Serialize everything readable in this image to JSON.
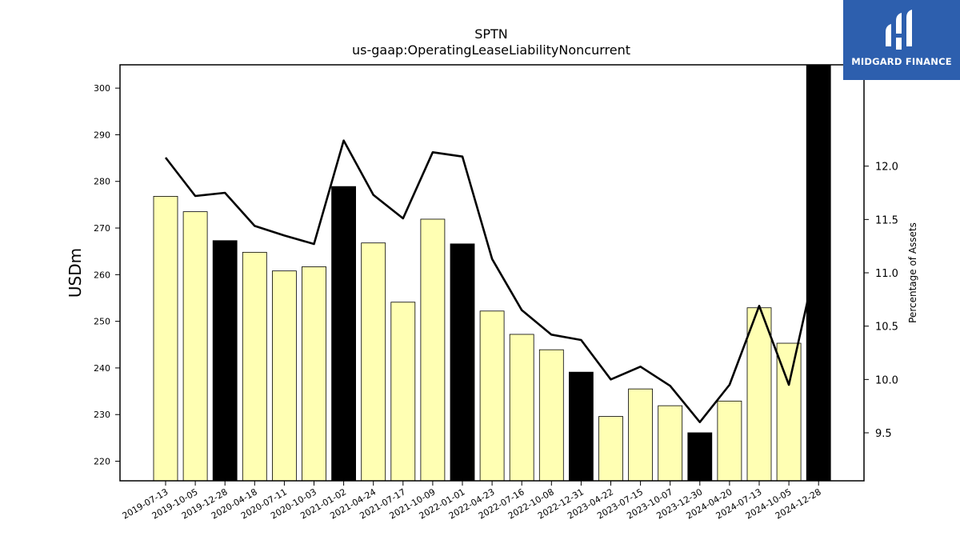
{
  "brand": {
    "name": "MIDGARD FINANCE",
    "bg_color": "#2d5fae"
  },
  "chart_data": {
    "type": "bar",
    "title": "SPTN",
    "subtitle": "us-gaap:OperatingLeaseLiabilityNoncurrent",
    "ylabel": "USDm",
    "y2label": "Percentage of Assets",
    "ylim": [
      215.8,
      305
    ],
    "y2lim": [
      9.05,
      12.95
    ],
    "yticks": [
      220,
      230,
      240,
      250,
      260,
      270,
      280,
      290,
      300
    ],
    "y2ticks": [
      "9.5",
      "10.0",
      "10.5",
      "11.0",
      "11.5",
      "12.0"
    ],
    "categories": [
      "2019-07-13",
      "2019-10-05",
      "2019-12-28",
      "2020-04-18",
      "2020-07-11",
      "2020-10-03",
      "2021-01-02",
      "2021-04-24",
      "2021-07-17",
      "2021-10-09",
      "2022-01-01",
      "2022-04-23",
      "2022-07-16",
      "2022-10-08",
      "2022-12-31",
      "2023-04-22",
      "2023-07-15",
      "2023-10-07",
      "2023-12-30",
      "2024-04-20",
      "2024-07-13",
      "2024-10-05",
      "2024-12-28"
    ],
    "series": [
      {
        "type": "bar",
        "values": [
          276.8,
          273.5,
          267.3,
          264.8,
          260.8,
          261.7,
          278.9,
          266.8,
          254.1,
          271.9,
          266.6,
          252.2,
          247.2,
          243.9,
          239.1,
          229.6,
          235.5,
          231.9,
          226.1,
          232.9,
          252.9,
          245.3,
          305.5
        ],
        "highlight": [
          false,
          false,
          true,
          false,
          false,
          false,
          true,
          false,
          false,
          false,
          true,
          false,
          false,
          false,
          true,
          false,
          false,
          false,
          true,
          false,
          false,
          false,
          true
        ],
        "color": "#ffffb3",
        "highlight_color": "#000000"
      },
      {
        "type": "line",
        "axis": "right",
        "values": [
          12.08,
          11.72,
          11.75,
          11.44,
          11.35,
          11.27,
          12.24,
          11.73,
          11.51,
          12.13,
          12.09,
          11.13,
          10.65,
          10.42,
          10.37,
          10.0,
          10.12,
          9.94,
          9.6,
          9.95,
          10.69,
          9.95,
          11.2
        ],
        "color": "#000000"
      }
    ],
    "grid": false,
    "legend": "none"
  }
}
